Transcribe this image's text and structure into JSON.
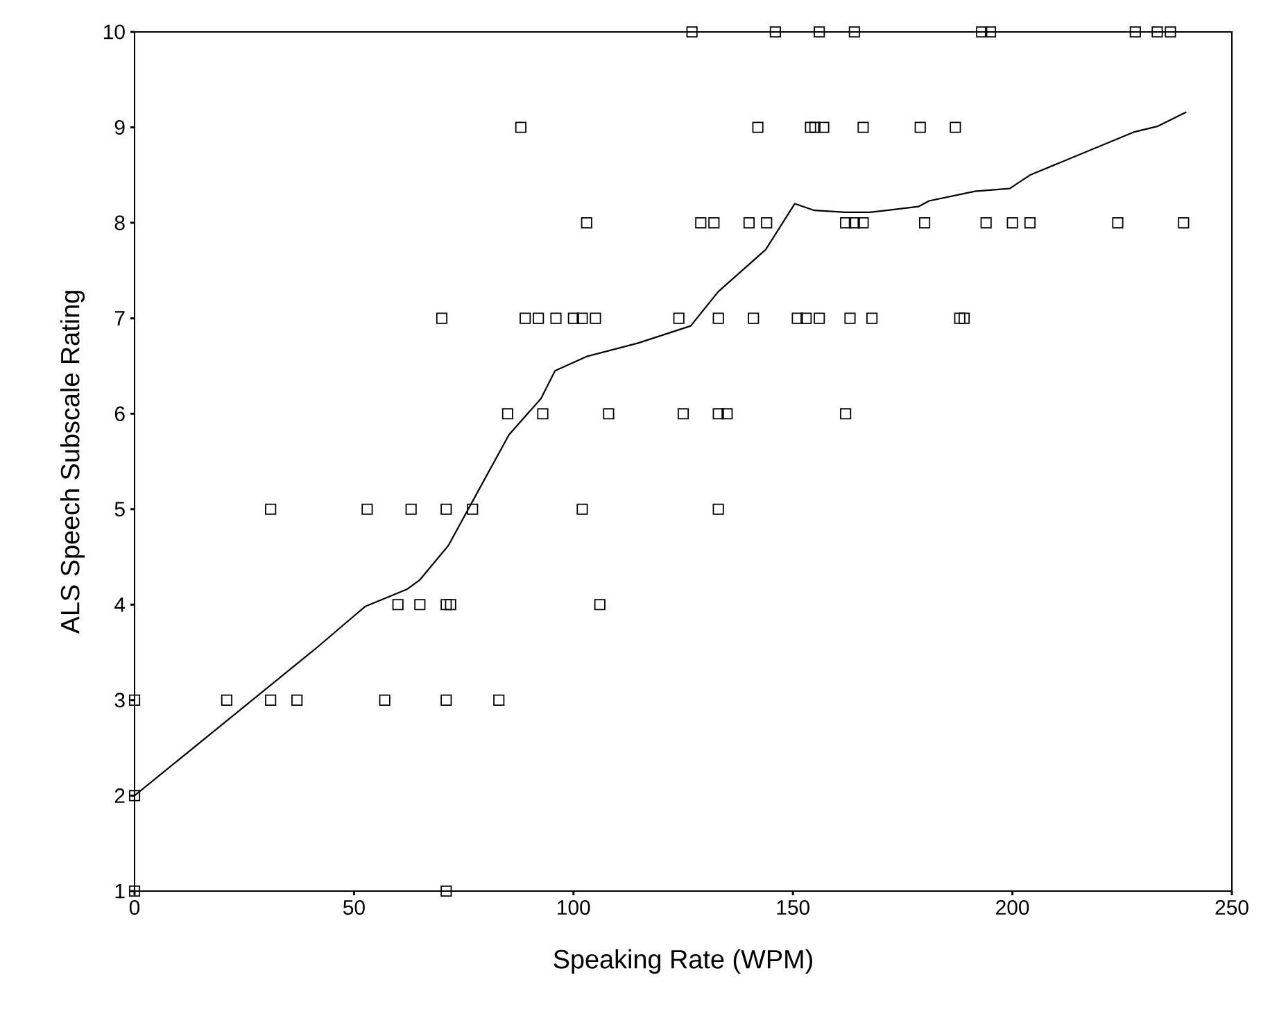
{
  "chart_data": {
    "type": "scatter",
    "xlabel": "Speaking Rate (WPM)",
    "ylabel": "ALS Speech Subscale Rating",
    "xlim": [
      0,
      250
    ],
    "ylim": [
      1,
      10
    ],
    "xticks": [
      0,
      50,
      100,
      150,
      200,
      250
    ],
    "yticks": [
      1,
      2,
      3,
      4,
      5,
      6,
      7,
      8,
      9,
      10
    ],
    "grid": false,
    "series": [
      {
        "marker": "square",
        "color": "#000000",
        "x": [
          127,
          146,
          156,
          164,
          193,
          195,
          228,
          233,
          236,
          88,
          142,
          154,
          155,
          157,
          166,
          179,
          187,
          103,
          129,
          132,
          140,
          144,
          162,
          164,
          166,
          180,
          194,
          200,
          204,
          224,
          239,
          70,
          89,
          92,
          96,
          100,
          102,
          105,
          124,
          133,
          141,
          151,
          153,
          156,
          163,
          168,
          188,
          189,
          85,
          93,
          108,
          125,
          133,
          135,
          162,
          31,
          53,
          63,
          71,
          77,
          102,
          133,
          60,
          65,
          71,
          72,
          106,
          0,
          21,
          31,
          37,
          57,
          71,
          83,
          0,
          0,
          71
        ],
        "values": [
          10,
          10,
          10,
          10,
          10,
          10,
          10,
          10,
          10,
          9,
          9,
          9,
          9,
          9,
          9,
          9,
          9,
          8,
          8,
          8,
          8,
          8,
          8,
          8,
          8,
          8,
          8,
          8,
          8,
          8,
          8,
          7,
          7,
          7,
          7,
          7,
          7,
          7,
          7,
          7,
          7,
          7,
          7,
          7,
          7,
          7,
          7,
          7,
          6,
          6,
          6,
          6,
          6,
          6,
          6,
          5,
          5,
          5,
          5,
          5,
          5,
          5,
          4,
          4,
          4,
          4,
          4,
          3,
          3,
          3,
          3,
          3,
          3,
          3,
          2,
          1,
          1
        ]
      },
      {
        "type": "line",
        "marker": "none",
        "line_style": "solid",
        "color": "#000000",
        "x": [
          0,
          41,
          52.5,
          62,
          65,
          71.5,
          77.8,
          85.3,
          92.6,
          95.8,
          103,
          114.7,
          126.7,
          133,
          143.8,
          150.4,
          154.9,
          162,
          167.5,
          178.6,
          181,
          191.5,
          199.4,
          204,
          227.6,
          233,
          239.6
        ],
        "values": [
          2,
          3.53,
          3.98,
          4.16,
          4.26,
          4.62,
          5.15,
          5.78,
          6.16,
          6.45,
          6.6,
          6.74,
          6.92,
          7.28,
          7.72,
          8.2,
          8.13,
          8.11,
          8.11,
          8.17,
          8.23,
          8.33,
          8.36,
          8.5,
          8.95,
          9.01,
          9.16
        ]
      }
    ]
  }
}
